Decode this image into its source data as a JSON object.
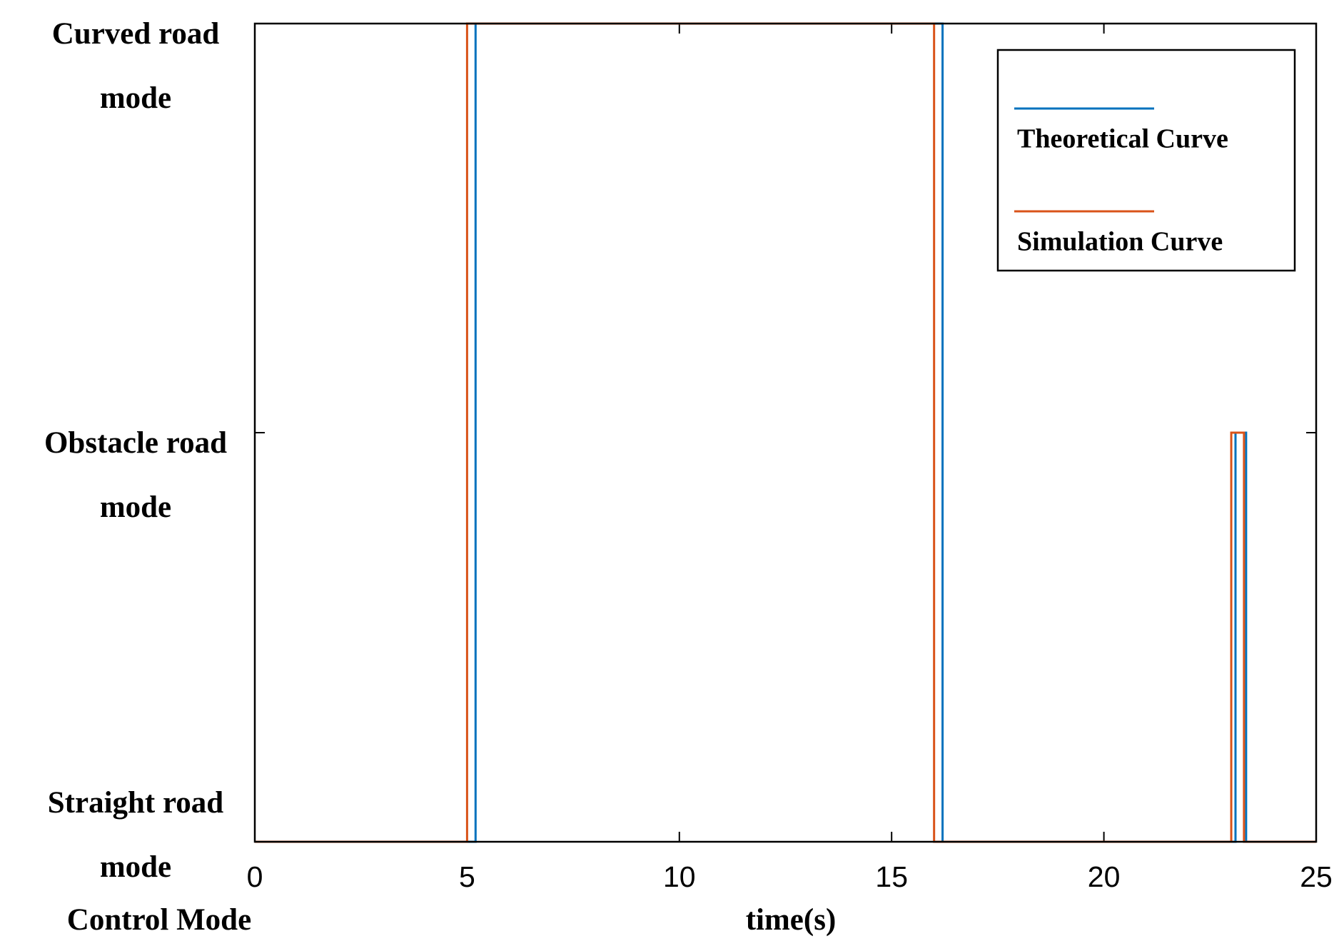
{
  "chart_data": {
    "type": "line",
    "x_label": "time(s)",
    "y_label": "Control Mode",
    "xlim": [
      0,
      25
    ],
    "xticks": [
      0,
      5,
      10,
      15,
      20,
      25
    ],
    "ylim": [
      0,
      2
    ],
    "yticks": [
      {
        "value": 0,
        "label": "Straight road mode"
      },
      {
        "value": 1,
        "label": "Obstacle road mode"
      },
      {
        "value": 2,
        "label": "Curved road mode"
      }
    ],
    "legend": "top-right",
    "series": [
      {
        "name": "Theoretical Curve",
        "color": "#0072BD",
        "x": [
          0,
          5.2,
          5.2,
          16.2,
          16.2,
          23.1,
          23.1,
          23.35,
          23.35,
          25
        ],
        "values": [
          0,
          0,
          2,
          2,
          0,
          0,
          1,
          1,
          0,
          0
        ]
      },
      {
        "name": "Simulation Curve",
        "color": "#D95319",
        "x": [
          0,
          5.0,
          5.0,
          16.0,
          16.0,
          23.0,
          23.0,
          23.3,
          23.3,
          25
        ],
        "values": [
          0,
          0,
          2,
          2,
          0,
          0,
          1,
          1,
          0,
          0
        ]
      }
    ]
  }
}
